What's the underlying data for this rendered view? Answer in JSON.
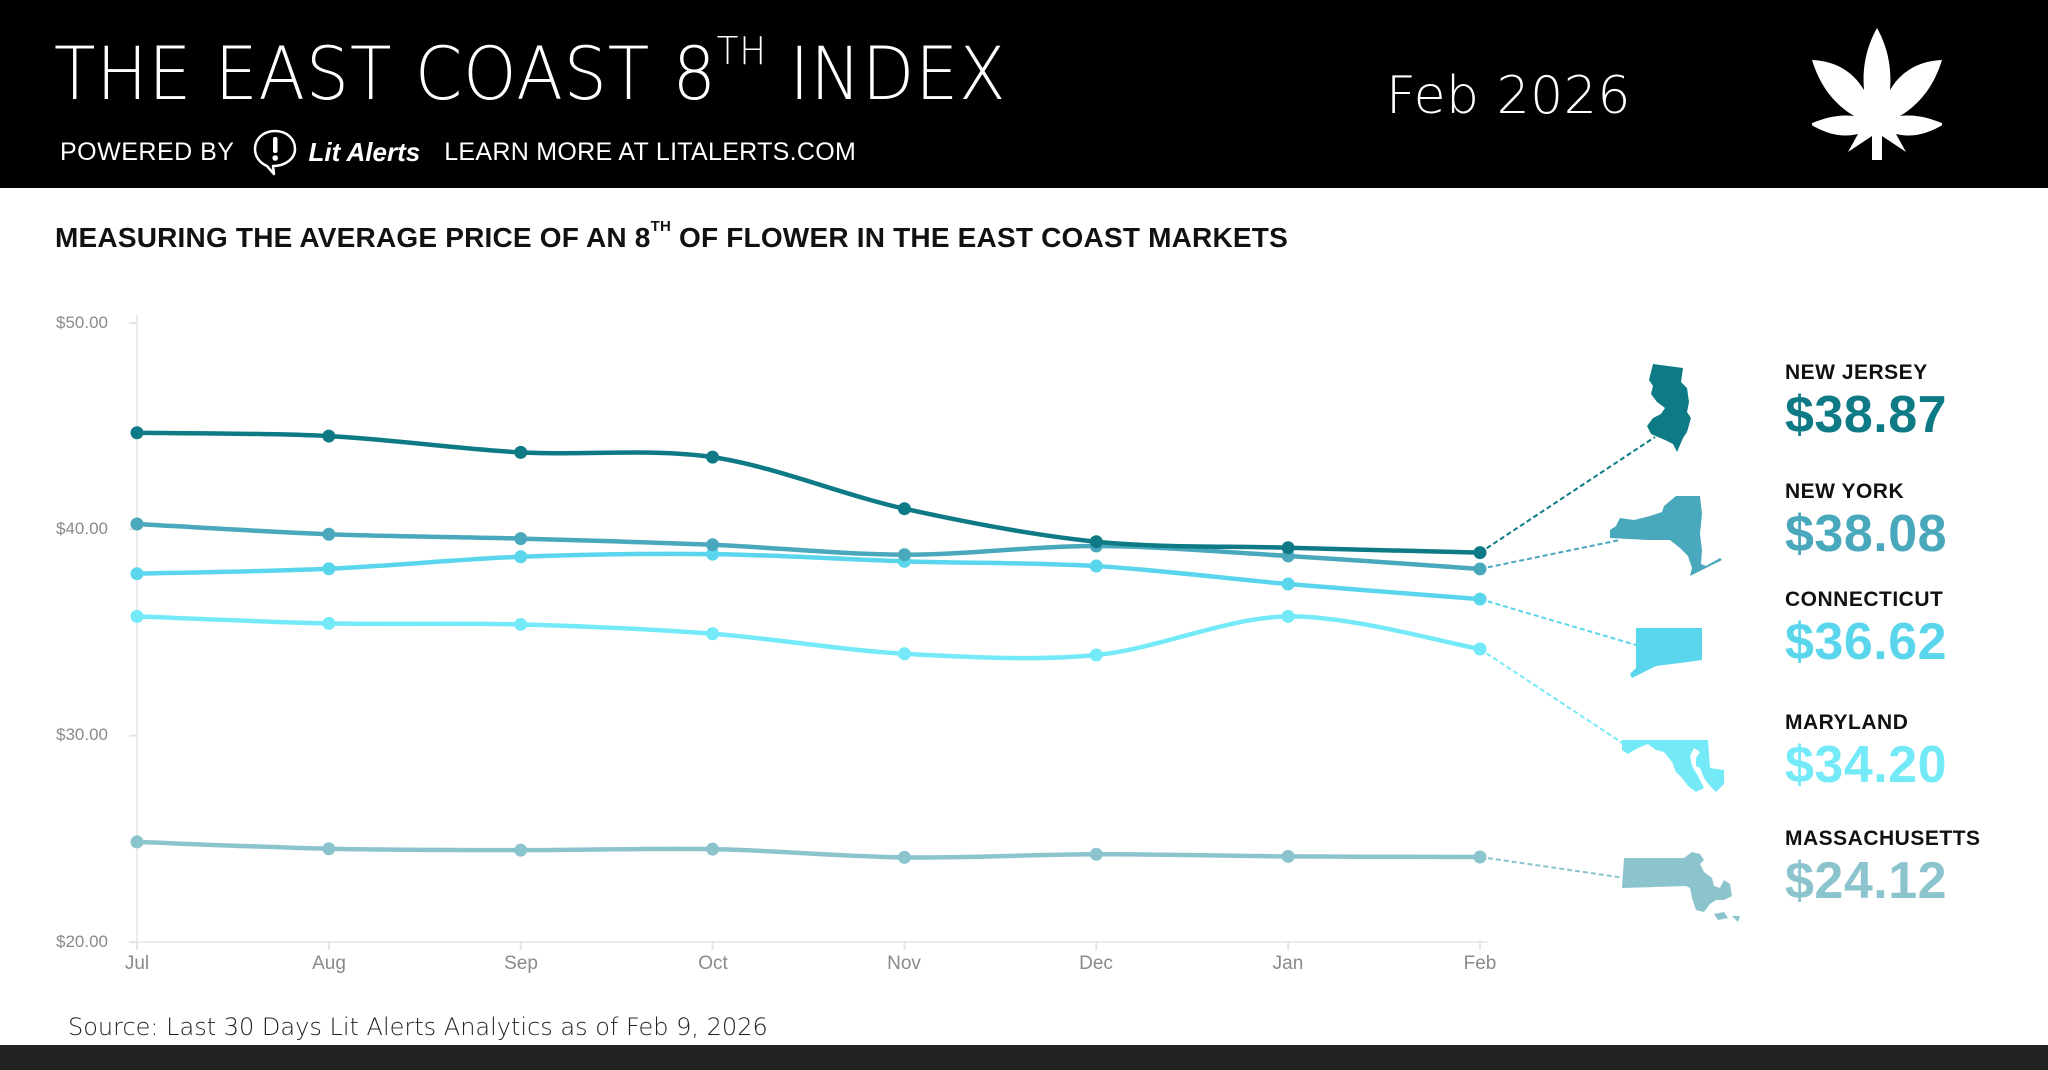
{
  "header": {
    "title_main": "THE EAST COAST 8",
    "title_sup": "TH",
    "title_end": " INDEX",
    "powered_by": "POWERED BY",
    "brand_name": "Lit Alerts",
    "learn_more": "LEARN MORE AT LITALERTS.COM",
    "date": "Feb 2026",
    "brand_icon": "speech-bubble-exclamation-icon",
    "leaf_icon": "cannabis-leaf-icon"
  },
  "subtitle": {
    "pre": "MEASURING THE AVERAGE PRICE OF AN 8",
    "sup": "TH",
    "post": " OF FLOWER IN THE EAST COAST MARKETS"
  },
  "chart_data": {
    "type": "line",
    "title": "MEASURING THE AVERAGE PRICE OF AN 8TH OF FLOWER IN THE EAST COAST MARKETS",
    "xlabel": "",
    "ylabel": "",
    "categories": [
      "Jul",
      "Aug",
      "Sep",
      "Oct",
      "Nov",
      "Dec",
      "Jan",
      "Feb"
    ],
    "ylim": [
      20,
      50
    ],
    "yticks": [
      "$50.00",
      "$40.00",
      "$30.00",
      "$20.00"
    ],
    "ytick_values": [
      50,
      40,
      30,
      20
    ],
    "grid": false,
    "legend_position": "right",
    "series": [
      {
        "name": "NEW JERSEY",
        "color": "#0E7A86",
        "values": [
          44.68,
          44.52,
          43.73,
          43.5,
          41.0,
          39.4,
          39.11,
          38.87
        ],
        "latest": "$38.87"
      },
      {
        "name": "NEW YORK",
        "color": "#4AA8BC",
        "values": [
          40.26,
          39.76,
          39.55,
          39.25,
          38.77,
          39.19,
          38.71,
          38.08
        ],
        "latest": "$38.08"
      },
      {
        "name": "CONNECTICUT",
        "color": "#5AD6EC",
        "values": [
          37.85,
          38.09,
          38.67,
          38.8,
          38.45,
          38.22,
          37.35,
          36.62
        ],
        "latest": "$36.62"
      },
      {
        "name": "MARYLAND",
        "color": "#74EAF8",
        "values": [
          35.78,
          35.44,
          35.39,
          34.94,
          33.97,
          33.91,
          35.78,
          34.2
        ],
        "latest": "$34.20"
      },
      {
        "name": "MASSACHUSETTS",
        "color": "#8CC4CE",
        "values": [
          24.85,
          24.52,
          24.45,
          24.5,
          24.1,
          24.25,
          24.15,
          24.12
        ],
        "latest": "$24.12"
      }
    ]
  },
  "legend": [
    {
      "state": "NEW JERSEY",
      "price": "$38.87",
      "color": "#0E7A86",
      "shape": "new-jersey-map-icon"
    },
    {
      "state": "NEW YORK",
      "price": "$38.08",
      "color": "#4AA8BC",
      "shape": "new-york-map-icon"
    },
    {
      "state": "CONNECTICUT",
      "price": "$36.62",
      "color": "#5AD6EC",
      "shape": "connecticut-map-icon"
    },
    {
      "state": "MARYLAND",
      "price": "$34.20",
      "color": "#74EAF8",
      "shape": "maryland-map-icon"
    },
    {
      "state": "MASSACHUSETTS",
      "price": "$24.12",
      "color": "#8CC4CE",
      "shape": "massachusetts-map-icon"
    }
  ],
  "footer": {
    "source": "Source: Last 30 Days Lit Alerts Analytics as of Feb 9, 2026"
  }
}
